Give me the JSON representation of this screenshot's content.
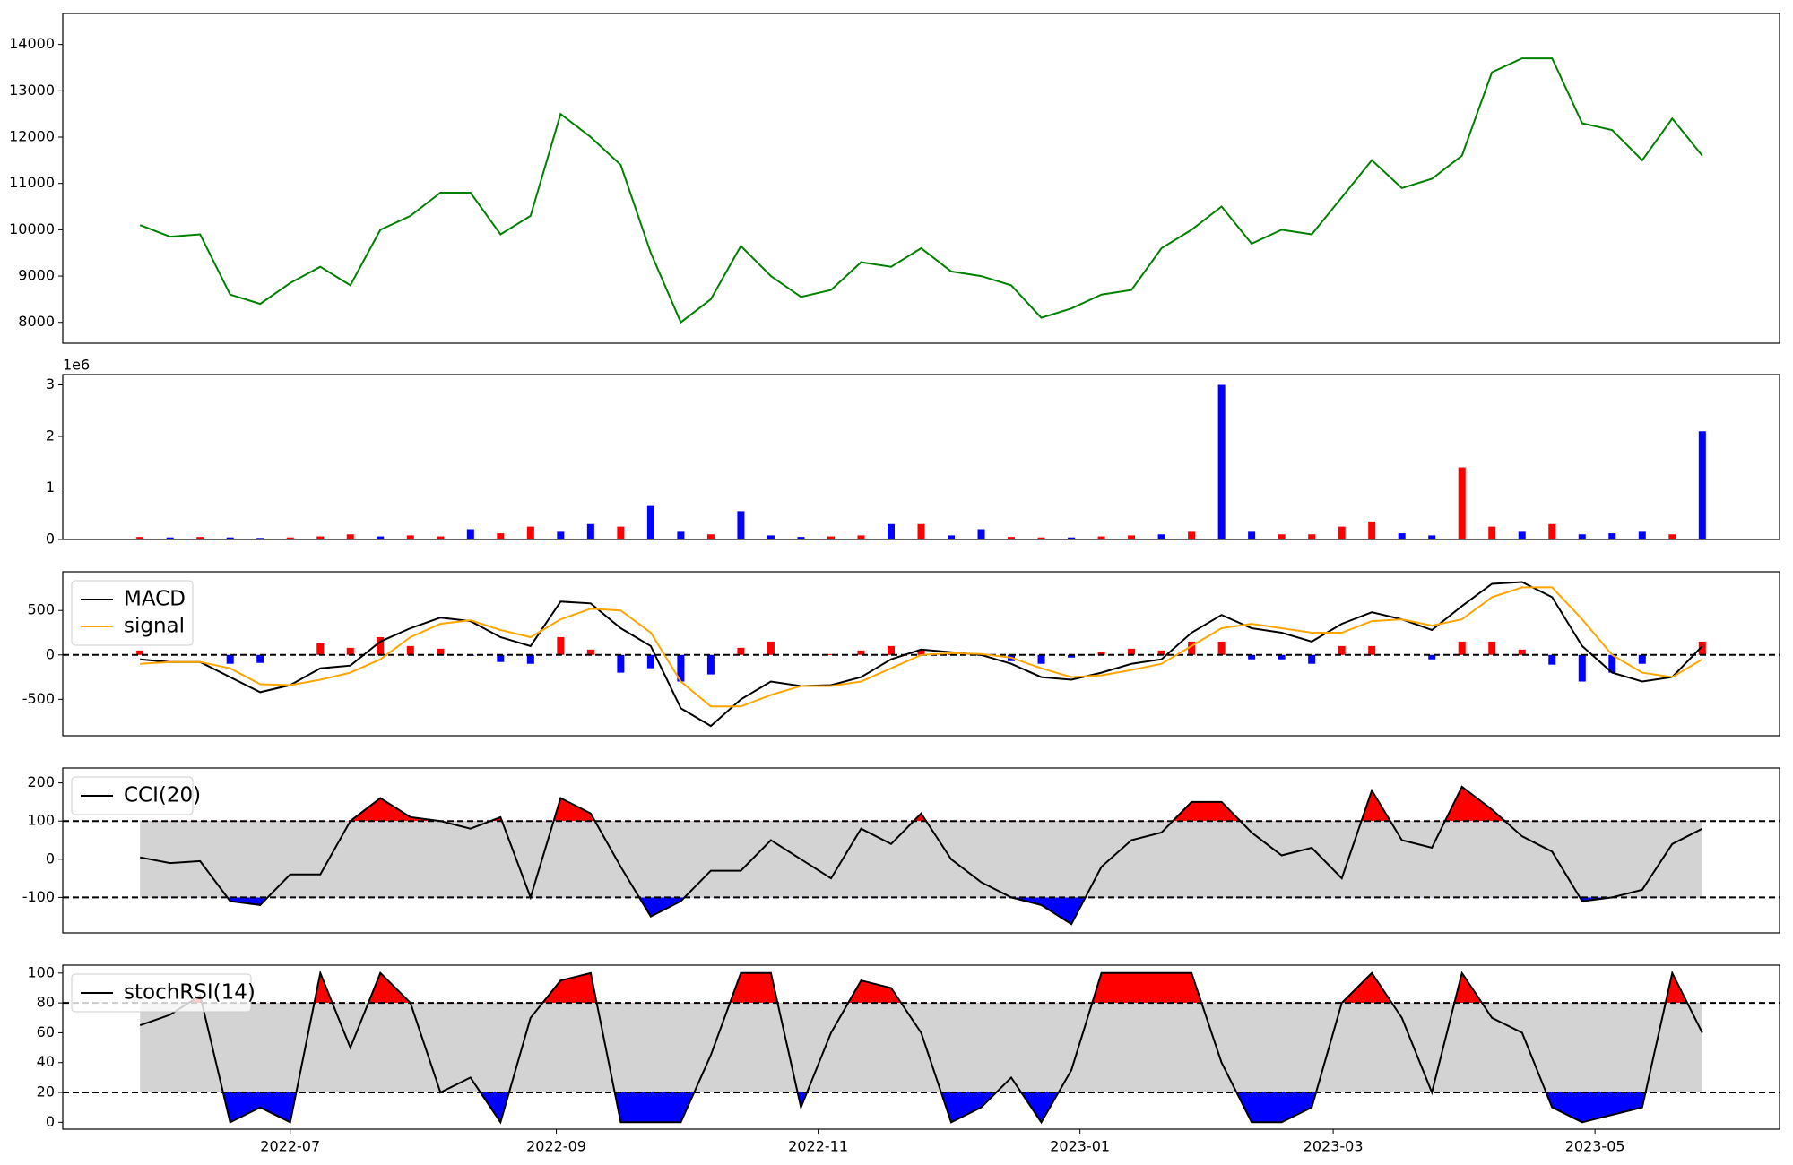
{
  "chart_data": [
    {
      "type": "line",
      "ylim": [
        7550,
        14670
      ],
      "yticks": [
        8000,
        9000,
        10000,
        11000,
        12000,
        13000,
        14000
      ],
      "series": [
        {
          "color": "#008000",
          "values": [
            10100,
            9850,
            9900,
            8600,
            8400,
            8850,
            9200,
            8800,
            10000,
            10300,
            10800,
            10800,
            9900,
            10300,
            12500,
            12000,
            11400,
            9500,
            8000,
            8500,
            9650,
            9000,
            8550,
            8700,
            9300,
            9200,
            9600,
            9100,
            9000,
            8800,
            8100,
            8300,
            8600,
            8700,
            9600,
            10000,
            10500,
            9700,
            10000,
            9900,
            10700,
            11500,
            10900,
            11100,
            11600,
            13400,
            13700,
            13700,
            12300,
            12150,
            11500,
            12400,
            11600
          ]
        }
      ]
    },
    {
      "type": "bar",
      "ylim": [
        0,
        3200000
      ],
      "offset_label": "1e6",
      "yticks": [
        {
          "value": 0,
          "label": "0"
        },
        {
          "value": 1000000,
          "label": "1"
        },
        {
          "value": 2000000,
          "label": "2"
        },
        {
          "value": 3000000,
          "label": "3"
        }
      ],
      "values": [
        50000,
        40000,
        50000,
        40000,
        30000,
        40000,
        60000,
        100000,
        60000,
        80000,
        60000,
        200000,
        120000,
        250000,
        150000,
        300000,
        250000,
        650000,
        150000,
        100000,
        550000,
        80000,
        50000,
        60000,
        80000,
        300000,
        300000,
        80000,
        200000,
        50000,
        40000,
        40000,
        60000,
        80000,
        100000,
        150000,
        3000000,
        150000,
        100000,
        100000,
        250000,
        350000,
        120000,
        80000,
        1400000,
        250000,
        150000,
        300000,
        100000,
        120000,
        150000,
        100000,
        2100000
      ],
      "colors": [
        "#ff0000",
        "#0000ff",
        "#ff0000",
        "#0000ff",
        "#0000ff",
        "#ff0000",
        "#ff0000",
        "#ff0000",
        "#0000ff",
        "#ff0000",
        "#ff0000",
        "#0000ff",
        "#ff0000",
        "#ff0000",
        "#0000ff",
        "#0000ff",
        "#ff0000",
        "#0000ff",
        "#0000ff",
        "#ff0000",
        "#0000ff",
        "#0000ff",
        "#0000ff",
        "#ff0000",
        "#ff0000",
        "#0000ff",
        "#ff0000",
        "#0000ff",
        "#0000ff",
        "#ff0000",
        "#ff0000",
        "#0000ff",
        "#ff0000",
        "#ff0000",
        "#0000ff",
        "#ff0000",
        "#0000ff",
        "#0000ff",
        "#ff0000",
        "#ff0000",
        "#ff0000",
        "#ff0000",
        "#0000ff",
        "#0000ff",
        "#ff0000",
        "#ff0000",
        "#0000ff",
        "#ff0000",
        "#0000ff",
        "#0000ff",
        "#0000ff",
        "#ff0000",
        "#0000ff"
      ]
    },
    {
      "type": "macd",
      "ylim": [
        -910,
        936
      ],
      "yticks": [
        -500,
        0,
        500
      ],
      "zero_line": 0,
      "legend": "upper left",
      "positive_color": "#ff0000",
      "negative_color": "#0000ff",
      "histogram": [
        50,
        0,
        0,
        -100,
        -90,
        0,
        130,
        80,
        200,
        100,
        70,
        -10,
        -80,
        -100,
        200,
        60,
        -200,
        -150,
        -300,
        -220,
        80,
        150,
        0,
        10,
        50,
        100,
        60,
        10,
        -10,
        -70,
        -100,
        -30,
        30,
        70,
        50,
        150,
        150,
        -50,
        -50,
        -100,
        100,
        100,
        0,
        -50,
        150,
        150,
        60,
        -110,
        -300,
        -200,
        -100,
        0,
        150
      ],
      "series": [
        {
          "name": "MACD",
          "color": "#000000",
          "values": [
            -50,
            -80,
            -80,
            -250,
            -420,
            -340,
            -150,
            -120,
            150,
            300,
            420,
            380,
            200,
            100,
            600,
            580,
            300,
            100,
            -600,
            -800,
            -500,
            -300,
            -350,
            -340,
            -250,
            -50,
            60,
            30,
            0,
            -100,
            -250,
            -280,
            -200,
            -100,
            -50,
            250,
            450,
            300,
            250,
            150,
            350,
            480,
            400,
            280,
            550,
            800,
            820,
            650,
            100,
            -200,
            -300,
            -250,
            100
          ]
        },
        {
          "name": "signal",
          "color": "#ffa500",
          "values": [
            -100,
            -80,
            -80,
            -150,
            -330,
            -340,
            -280,
            -200,
            -50,
            200,
            350,
            390,
            280,
            200,
            400,
            520,
            500,
            250,
            -300,
            -580,
            -580,
            -450,
            -350,
            -350,
            -300,
            -150,
            0,
            20,
            10,
            -30,
            -150,
            -250,
            -230,
            -170,
            -100,
            100,
            300,
            350,
            300,
            250,
            250,
            380,
            400,
            330,
            400,
            650,
            760,
            760,
            400,
            0,
            -200,
            -250,
            -50
          ]
        }
      ]
    },
    {
      "type": "oscillator",
      "ylim": [
        -193,
        239
      ],
      "yticks": [
        -100,
        0,
        100,
        200
      ],
      "upper": 100,
      "lower": -100,
      "legend": "upper left",
      "upper_color": "#ff0000",
      "lower_color": "#0000ff",
      "band_color": "#d3d3d3",
      "series": [
        {
          "name": "CCI(20)",
          "color": "#000000",
          "values": [
            5,
            -10,
            -5,
            -110,
            -120,
            -40,
            -40,
            100,
            160,
            110,
            100,
            80,
            110,
            -100,
            160,
            120,
            -20,
            -150,
            -110,
            -30,
            -30,
            50,
            0,
            -50,
            80,
            40,
            120,
            0,
            -60,
            -100,
            -120,
            -170,
            -20,
            50,
            70,
            150,
            150,
            70,
            10,
            30,
            -50,
            180,
            50,
            30,
            190,
            130,
            60,
            20,
            -110,
            -100,
            -80,
            40,
            80
          ]
        }
      ]
    },
    {
      "type": "oscillator",
      "ylim": [
        -4.6,
        105.3
      ],
      "yticks": [
        0,
        20,
        40,
        60,
        80,
        100
      ],
      "upper": 80,
      "lower": 20,
      "legend": "upper left",
      "upper_color": "#ff0000",
      "lower_color": "#0000ff",
      "band_color": "#d3d3d3",
      "xlim": [
        "2022-05-09",
        "2023-06-13"
      ],
      "xticks": [
        "2022-07",
        "2022-09",
        "2022-11",
        "2023-01",
        "2023-03",
        "2023-05"
      ],
      "x": [
        "2022-05-27",
        "2022-06-03",
        "2022-06-10",
        "2022-06-17",
        "2022-06-24",
        "2022-07-01",
        "2022-07-08",
        "2022-07-15",
        "2022-07-22",
        "2022-07-29",
        "2022-08-05",
        "2022-08-12",
        "2022-08-19",
        "2022-08-26",
        "2022-09-02",
        "2022-09-09",
        "2022-09-16",
        "2022-09-23",
        "2022-09-30",
        "2022-10-07",
        "2022-10-14",
        "2022-10-21",
        "2022-10-28",
        "2022-11-04",
        "2022-11-11",
        "2022-11-18",
        "2022-11-25",
        "2022-12-02",
        "2022-12-09",
        "2022-12-16",
        "2022-12-23",
        "2022-12-30",
        "2023-01-06",
        "2023-01-13",
        "2023-01-20",
        "2023-01-27",
        "2023-02-03",
        "2023-02-10",
        "2023-02-17",
        "2023-02-24",
        "2023-03-03",
        "2023-03-10",
        "2023-03-17",
        "2023-03-24",
        "2023-03-31",
        "2023-04-07",
        "2023-04-14",
        "2023-04-21",
        "2023-04-28",
        "2023-05-05",
        "2023-05-12",
        "2023-05-19",
        "2023-05-26"
      ],
      "series": [
        {
          "name": "stochRSI(14)",
          "color": "#000000",
          "values": [
            65,
            72,
            85,
            0,
            10,
            0,
            100,
            50,
            100,
            80,
            20,
            30,
            0,
            70,
            95,
            100,
            0,
            0,
            0,
            45,
            100,
            100,
            10,
            60,
            95,
            90,
            60,
            0,
            10,
            30,
            0,
            35,
            100,
            100,
            100,
            100,
            40,
            0,
            0,
            10,
            80,
            100,
            70,
            20,
            100,
            70,
            60,
            10,
            0,
            5,
            10,
            100,
            60
          ]
        }
      ]
    }
  ]
}
